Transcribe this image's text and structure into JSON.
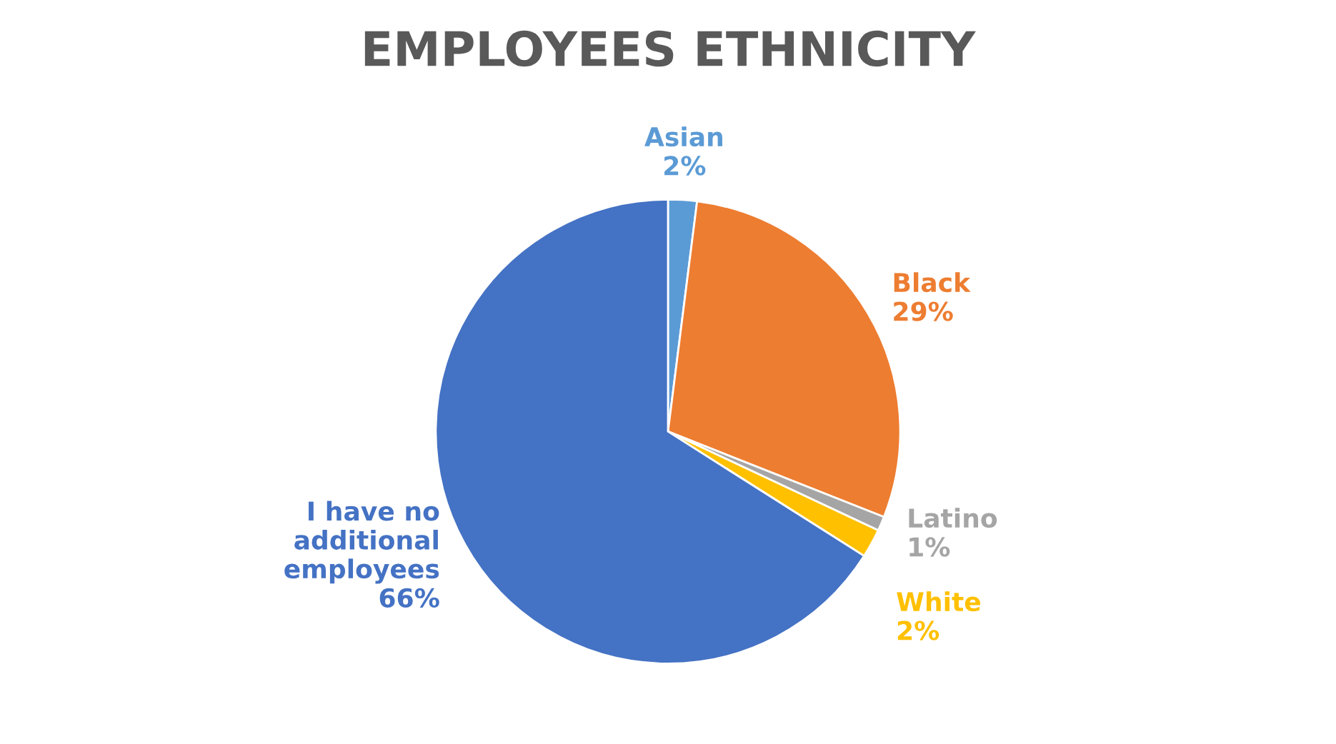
{
  "chart_data": {
    "type": "pie",
    "title": "EMPLOYEES ETHNICITY",
    "categories": [
      "Asian",
      "Black",
      "Latino",
      "White",
      "I have no\nadditional\nemployees"
    ],
    "values": [
      2,
      29,
      1,
      2,
      66
    ],
    "value_labels": [
      "2%",
      "29%",
      "1%",
      "2%",
      "66%"
    ],
    "colors": [
      "#5b9bd5",
      "#ed7d31",
      "#a5a5a5",
      "#ffc000",
      "#4472c4"
    ],
    "legend": false
  }
}
